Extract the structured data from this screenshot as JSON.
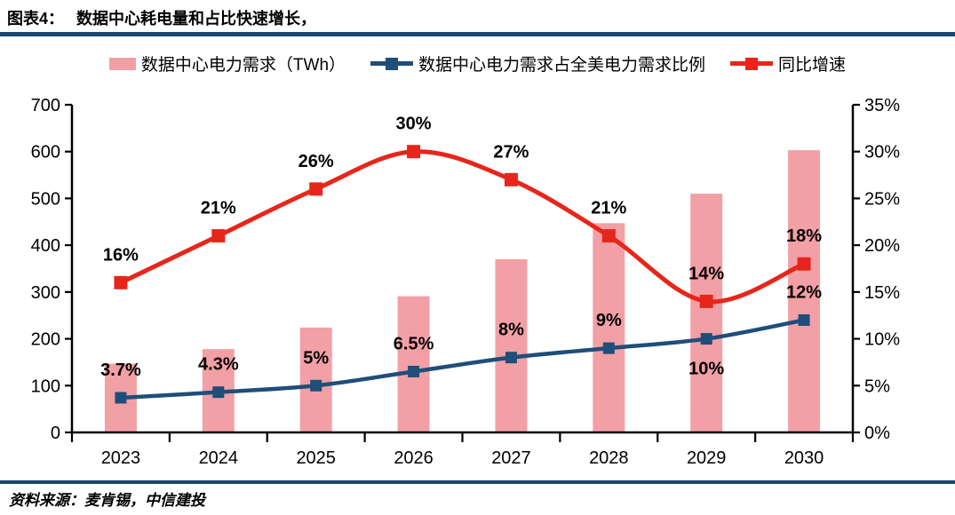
{
  "header": {
    "label": "图表4：",
    "title": "数据中心耗电量和占比快速增长，"
  },
  "legend": [
    {
      "label": "数据中心电力需求（TWh）",
      "swatch": "bar",
      "color": "#F2A0A6"
    },
    {
      "label": "数据中心电力需求占全美电力需求比例",
      "swatch": "line-square",
      "color": "#1F4E79"
    },
    {
      "label": "同比增速",
      "swatch": "line-square",
      "color": "#E7261B"
    }
  ],
  "footer": {
    "source": "资料来源：麦肯锡，中信建投"
  },
  "colors": {
    "bar_pink": "#F2A0A6",
    "share_line_navy": "#1F4E79",
    "growth_line_red": "#E7261B",
    "divider_navy": "#17476F",
    "axis_black": "#000000"
  },
  "chart_data": {
    "type": "combo-bar-line",
    "title": "数据中心耗电量和占比快速增长",
    "categories": [
      "2023",
      "2024",
      "2025",
      "2026",
      "2027",
      "2028",
      "2029",
      "2030"
    ],
    "series": [
      {
        "name": "数据中心电力需求（TWh）",
        "type": "bar",
        "axis": "left",
        "color": "#F2A0A6",
        "values": [
          147,
          178,
          224,
          291,
          370,
          447,
          510,
          603
        ]
      },
      {
        "name": "数据中心电力需求占全美电力需求比例",
        "type": "line",
        "axis": "right",
        "color": "#1F4E79",
        "values": [
          3.7,
          4.3,
          5,
          6.5,
          8,
          9,
          10,
          12
        ],
        "labels": [
          "3.7%",
          "4.3%",
          "5%",
          "6.5%",
          "8%",
          "9%",
          "10%",
          "12%"
        ],
        "label_side": [
          "above",
          "above",
          "above",
          "above",
          "above",
          "above",
          "below",
          "above"
        ]
      },
      {
        "name": "同比增速",
        "type": "line",
        "axis": "right",
        "color": "#E7261B",
        "values": [
          16,
          21,
          26,
          30,
          27,
          21,
          14,
          18
        ],
        "labels": [
          "16%",
          "21%",
          "26%",
          "30%",
          "27%",
          "21%",
          "14%",
          "18%"
        ],
        "label_side": [
          "above",
          "above",
          "above",
          "above",
          "above",
          "above",
          "above",
          "above"
        ]
      }
    ],
    "left_axis": {
      "min": 0,
      "max": 700,
      "step": 100,
      "tick_labels": [
        "0",
        "100",
        "200",
        "300",
        "400",
        "500",
        "600",
        "700"
      ]
    },
    "right_axis": {
      "min": 0,
      "max": 35,
      "step": 5,
      "suffix": "%",
      "tick_labels": [
        "0%",
        "5%",
        "10%",
        "15%",
        "20%",
        "25%",
        "30%",
        "35%"
      ]
    },
    "grid": false,
    "legend_position": "top"
  }
}
